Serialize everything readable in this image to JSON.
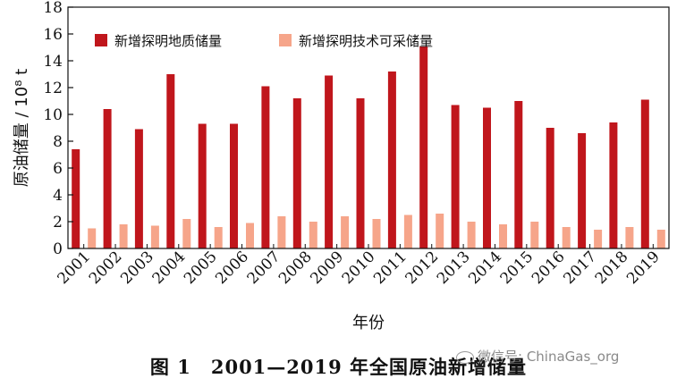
{
  "chart_data": {
    "type": "bar",
    "categories": [
      "2001",
      "2002",
      "2003",
      "2004",
      "2005",
      "2006",
      "2007",
      "2008",
      "2009",
      "2010",
      "2011",
      "2012",
      "2013",
      "2014",
      "2015",
      "2016",
      "2017",
      "2018",
      "2019"
    ],
    "series": [
      {
        "name": "新增探明地质储量",
        "color": "#c0161c",
        "values": [
          7.4,
          10.4,
          8.9,
          13.0,
          9.3,
          9.3,
          12.1,
          11.2,
          12.9,
          11.2,
          13.2,
          15.1,
          10.7,
          10.5,
          11.0,
          9.0,
          8.6,
          9.4,
          11.1
        ]
      },
      {
        "name": "新增探明技术可采储量",
        "color": "#f6a58a",
        "values": [
          1.5,
          1.8,
          1.7,
          2.2,
          1.6,
          1.9,
          2.4,
          2.0,
          2.4,
          2.2,
          2.5,
          2.6,
          2.0,
          1.8,
          2.0,
          1.6,
          1.4,
          1.6,
          1.4
        ]
      }
    ],
    "xlabel": "年份",
    "ylabel": "原油储量 / 10⁸ t",
    "ylim": [
      0,
      18
    ],
    "yticks": [
      "0",
      "2",
      "4",
      "6",
      "8",
      "10",
      "12",
      "14",
      "16",
      "18"
    ],
    "legend": "top-left"
  },
  "caption": "图 1　2001—2019 年全国原油新增储量",
  "watermark": "微信号: ChinaGas_org"
}
